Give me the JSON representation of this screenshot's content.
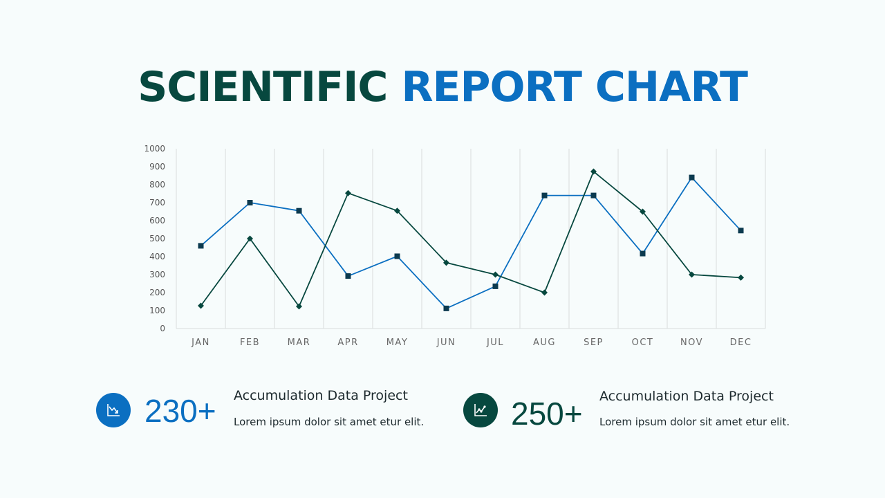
{
  "title": {
    "part1": "SCIENTIFIC",
    "part2": "REPORT CHART",
    "color1": "#07483f",
    "color2": "#0b6fc1"
  },
  "chart_data": {
    "type": "line",
    "categories": [
      "JAN",
      "FEB",
      "MAR",
      "APR",
      "MAY",
      "JUN",
      "JUL",
      "AUG",
      "SEP",
      "OCT",
      "NOV",
      "DEC"
    ],
    "ylim": [
      0,
      1000
    ],
    "yticks": [
      0,
      100,
      200,
      300,
      400,
      500,
      600,
      700,
      800,
      900,
      1000
    ],
    "grid": "vertical",
    "series": [
      {
        "color": "#0b6fc1",
        "marker": "square",
        "values": [
          460,
          700,
          655,
          292,
          402,
          112,
          235,
          740,
          740,
          417,
          840,
          545
        ]
      },
      {
        "color": "#07483f",
        "marker": "diamond",
        "values": [
          127,
          500,
          123,
          753,
          655,
          366,
          300,
          200,
          873,
          650,
          300,
          283
        ]
      }
    ]
  },
  "stats": [
    {
      "value": "230+",
      "heading": "Accumulation Data Project",
      "text": "Lorem ipsum dolor sit amet etur elit.",
      "icon": "decline-chart-icon",
      "color": "#0b6fc1"
    },
    {
      "value": "250+",
      "heading": "Accumulation Data Project",
      "text": "Lorem ipsum dolor sit amet etur elit.",
      "icon": "growth-chart-icon",
      "color": "#07483f"
    }
  ]
}
